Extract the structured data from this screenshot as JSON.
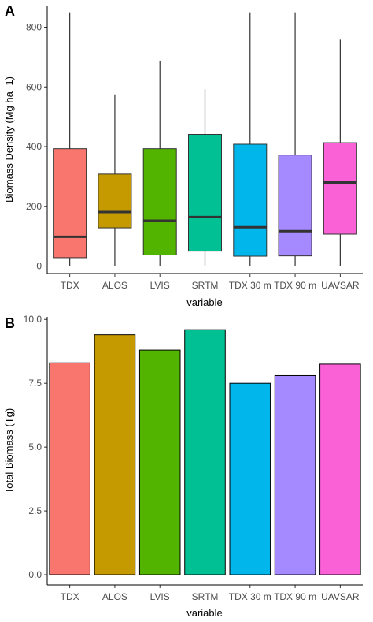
{
  "chart_data": [
    {
      "panel_label": "A",
      "type": "box",
      "xlabel": "variable",
      "ylabel": "Biomass Density (Mg ha−1)",
      "ylim": [
        -25,
        870
      ],
      "yticks": [
        0,
        200,
        400,
        600,
        800
      ],
      "grid": false,
      "categories": [
        "TDX",
        "ALOS",
        "LVIS",
        "SRTM",
        "TDX 30 m",
        "TDX 90 m",
        "UAVSAR"
      ],
      "boxes": [
        {
          "category": "TDX",
          "min": 0,
          "q1": 28,
          "median": 98,
          "q3": 393,
          "max": 850,
          "color": "#F8766D"
        },
        {
          "category": "ALOS",
          "min": 0,
          "q1": 128,
          "median": 181,
          "q3": 308,
          "max": 575,
          "color": "#C49A00"
        },
        {
          "category": "LVIS",
          "min": 0,
          "q1": 37,
          "median": 152,
          "q3": 393,
          "max": 688,
          "color": "#53B400"
        },
        {
          "category": "SRTM",
          "min": 0,
          "q1": 50,
          "median": 164,
          "q3": 441,
          "max": 592,
          "color": "#00C094"
        },
        {
          "category": "TDX 30 m",
          "min": 0,
          "q1": 33,
          "median": 130,
          "q3": 408,
          "max": 850,
          "color": "#00B6EB"
        },
        {
          "category": "TDX 90 m",
          "min": 0,
          "q1": 34,
          "median": 117,
          "q3": 372,
          "max": 850,
          "color": "#A58AFF"
        },
        {
          "category": "UAVSAR",
          "min": 0,
          "q1": 107,
          "median": 280,
          "q3": 413,
          "max": 758,
          "color": "#FB61D7"
        }
      ]
    },
    {
      "panel_label": "B",
      "type": "bar",
      "xlabel": "variable",
      "ylabel": "Total Biomass (Tg)",
      "ylim": [
        -0.4,
        10.1
      ],
      "yticks": [
        "0.0",
        "2.5",
        "5.0",
        "7.5",
        "10.0"
      ],
      "grid": false,
      "categories": [
        "TDX",
        "ALOS",
        "LVIS",
        "SRTM",
        "TDX 30 m",
        "TDX 90 m",
        "UAVSAR"
      ],
      "values": [
        8.3,
        9.4,
        8.8,
        9.6,
        7.5,
        7.8,
        8.25
      ],
      "colors": [
        "#F8766D",
        "#C49A00",
        "#53B400",
        "#00C094",
        "#00B6EB",
        "#A58AFF",
        "#FB61D7"
      ]
    }
  ]
}
